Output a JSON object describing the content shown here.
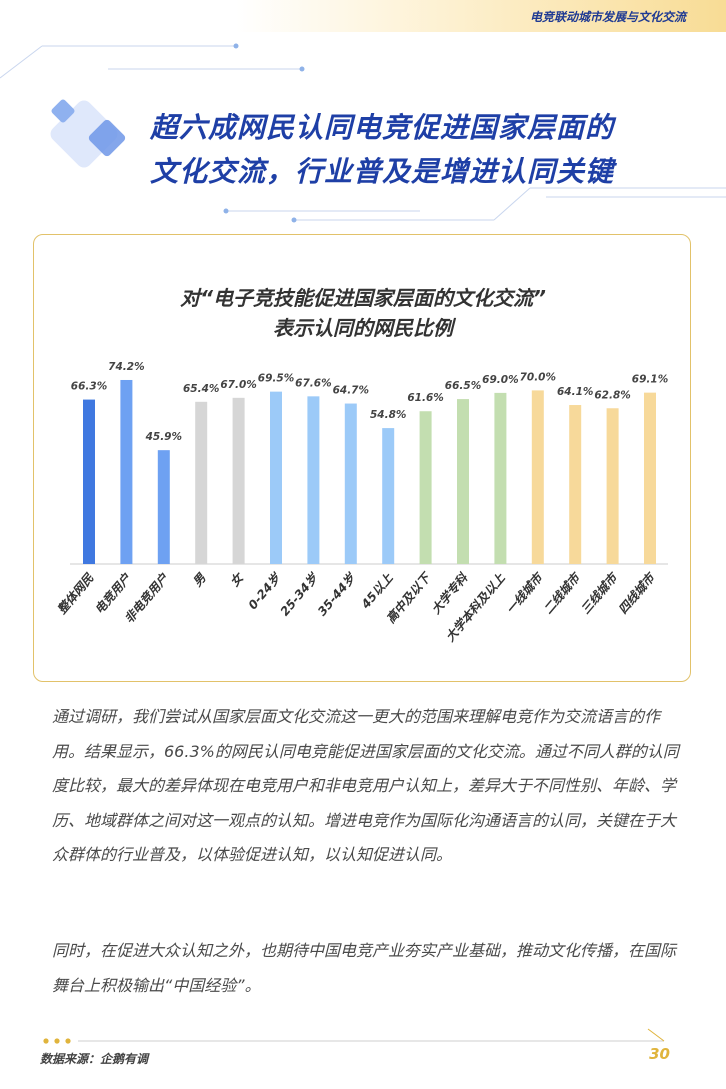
{
  "header": {
    "title": "电竞联动城市发展与文化交流"
  },
  "main_title": {
    "line1": "超六成网民认同电竞促进国家层面的",
    "line2": "文化交流，行业普及是增进认同关键"
  },
  "chart_data": {
    "type": "bar",
    "title_line1": "对“电子竞技能促进国家层面的文化交流”",
    "title_line2": "表示认同的网民比例",
    "categories": [
      "整体网民",
      "电竞用户",
      "非电竞用户",
      "男",
      "女",
      "0-24岁",
      "25-34岁",
      "35-44岁",
      "45以上",
      "高中及以下",
      "大学专科",
      "大学本科及以上",
      "一线城市",
      "二线城市",
      "三线城市",
      "四线城市"
    ],
    "values": [
      66.3,
      74.2,
      45.9,
      65.4,
      67.0,
      69.5,
      67.6,
      64.7,
      54.8,
      61.6,
      66.5,
      69.0,
      70.0,
      64.1,
      62.8,
      69.1
    ],
    "labels": [
      "66.3%",
      "74.2%",
      "45.9%",
      "65.4%",
      "67.0%",
      "69.5%",
      "67.6%",
      "64.7%",
      "54.8%",
      "61.6%",
      "66.5%",
      "69.0%",
      "70.0%",
      "64.1%",
      "62.8%",
      "69.1%"
    ],
    "colors": [
      "#3f78e0",
      "#6ea1f2",
      "#6ea1f2",
      "#d6d6d6",
      "#d6d6d6",
      "#9ccaf8",
      "#9ccaf8",
      "#9ccaf8",
      "#9ccaf8",
      "#c3deb0",
      "#c3deb0",
      "#c3deb0",
      "#f7d99a",
      "#f7d99a",
      "#f7d99a",
      "#f7d99a"
    ],
    "ylim": [
      0,
      100
    ],
    "xlabel": "",
    "ylabel": "",
    "grid": false
  },
  "body": {
    "p1": "通过调研，我们尝试从国家层面文化交流这一更大的范围来理解电竞作为交流语言的作用。结果显示，66.3%的网民认同电竞能促进国家层面的文化交流。通过不同人群的认同度比较，最大的差异体现在电竞用户和非电竞用户认知上，差异大于不同性别、年龄、学历、地域群体之间对这一观点的认知。增进电竞作为国际化沟通语言的认同，关键在于大众群体的行业普及，以体验促进认知，以认知促进认同。",
    "p2": "同时，在促进大众认知之外，也期待中国电竞产业夯实产业基础，推动文化传播，在国际舞台上积极输出“中国经验”。"
  },
  "footer": {
    "source": "数据来源：企鹅有调",
    "page_number": "30"
  },
  "colors": {
    "title_blue": "#1e3fa6",
    "accent_gold": "#e0b43c"
  }
}
